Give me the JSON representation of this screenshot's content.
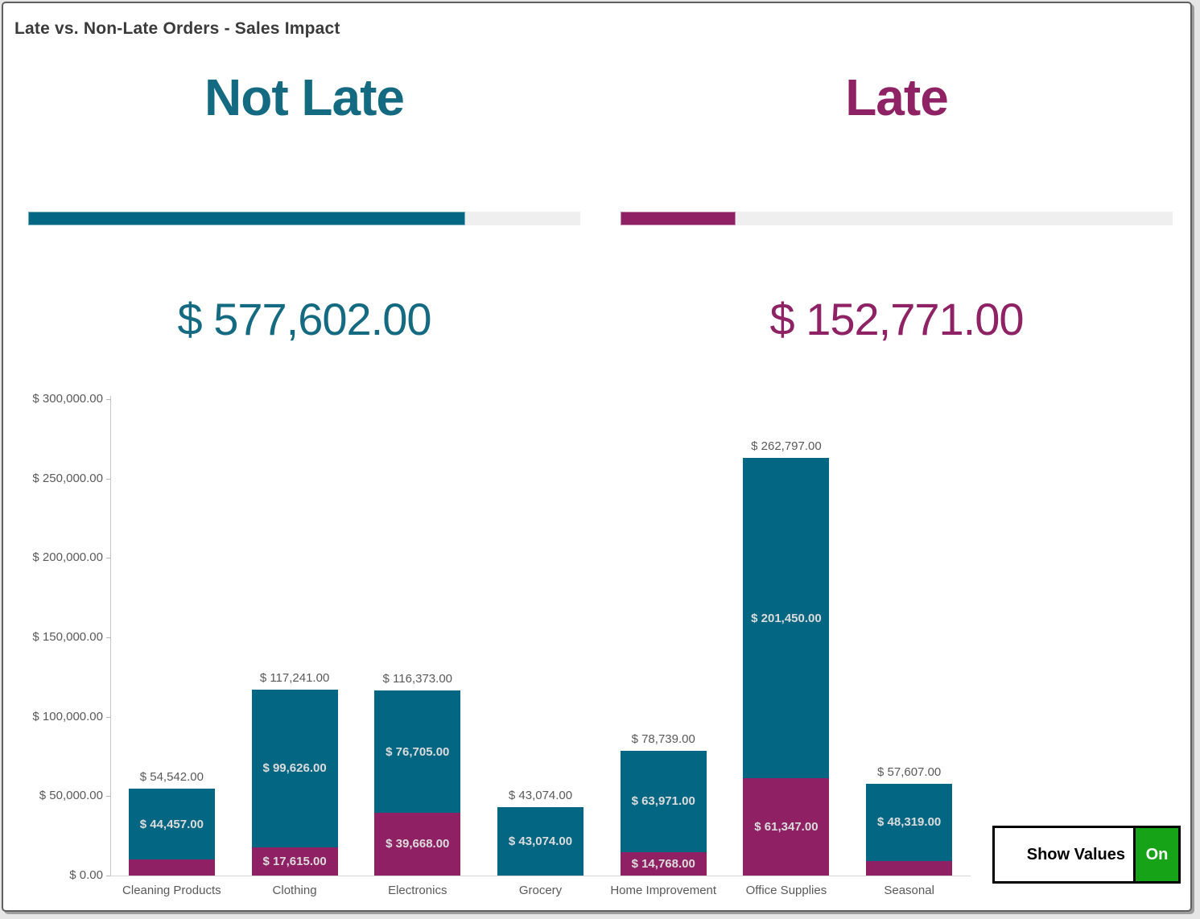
{
  "window": {
    "title": "Late vs. Non-Late Orders - Sales Impact"
  },
  "colors": {
    "teal": "#036682",
    "magenta": "#8e2063",
    "heading_teal": "#146a81",
    "heading_magenta": "#8e2264",
    "green": "#17a317",
    "progress_track": "#efefef",
    "axis_text": "#595959",
    "segment_label_text": "#dcdcdc"
  },
  "kpis": [
    {
      "id": "not_late",
      "label": "Not Late",
      "value_label": "$ 577,602.00",
      "value": 577602,
      "progress_pct": 79.1
    },
    {
      "id": "late",
      "label": "Late",
      "value_label": "$ 152,771.00",
      "value": 152771,
      "progress_pct": 20.9
    }
  ],
  "toggle": {
    "label": "Show Values",
    "state": "On"
  },
  "chart_data": {
    "type": "bar",
    "stacked": true,
    "grid": false,
    "legend": "none",
    "title": "",
    "xlabel": "",
    "ylabel": "",
    "ylim": [
      0,
      300000
    ],
    "y_ticks": [
      {
        "value": 300000,
        "label": "$ 300,000.00"
      },
      {
        "value": 250000,
        "label": "$ 250,000.00"
      },
      {
        "value": 200000,
        "label": "$ 200,000.00"
      },
      {
        "value": 150000,
        "label": "$ 150,000.00"
      },
      {
        "value": 100000,
        "label": "$ 100,000.00"
      },
      {
        "value": 50000,
        "label": "$ 50,000.00"
      },
      {
        "value": 0,
        "label": "$ 0.00"
      }
    ],
    "categories": [
      "Cleaning Products",
      "Clothing",
      "Electronics",
      "Grocery",
      "Home Improvement",
      "Office Supplies",
      "Seasonal"
    ],
    "series": [
      {
        "name": "Late",
        "color_key": "magenta",
        "values": [
          10085,
          17615,
          39668,
          0,
          14768,
          61347,
          9288
        ],
        "labels": [
          null,
          "$ 17,615.00",
          "$ 39,668.00",
          null,
          "$ 14,768.00",
          "$ 61,347.00",
          null
        ]
      },
      {
        "name": "Not Late",
        "color_key": "teal",
        "values": [
          44457,
          99626,
          76705,
          43074,
          63971,
          201450,
          48319
        ],
        "labels": [
          "$ 44,457.00",
          "$ 99,626.00",
          "$ 76,705.00",
          "$ 43,074.00",
          "$ 63,971.00",
          "$ 201,450.00",
          "$ 48,319.00"
        ]
      }
    ],
    "totals": [
      54542,
      117241,
      116373,
      43074,
      78739,
      262797,
      57607
    ],
    "total_labels": [
      "$ 54,542.00",
      "$ 117,241.00",
      "$ 116,373.00",
      "$ 43,074.00",
      "$ 78,739.00",
      "$ 262,797.00",
      "$ 57,607.00"
    ]
  }
}
